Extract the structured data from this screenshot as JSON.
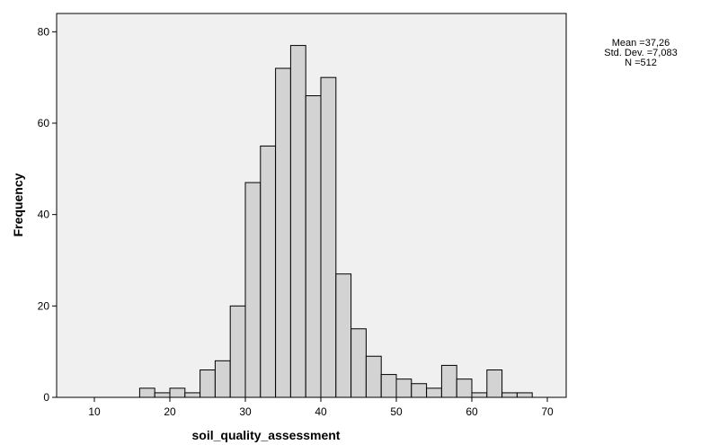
{
  "chart_data": {
    "type": "bar",
    "title": "",
    "xlabel": "soil_quality_assessment",
    "ylabel": "Frequency",
    "xlim": [
      5,
      72.5
    ],
    "ylim": [
      0,
      84
    ],
    "xticks": [
      10,
      20,
      30,
      40,
      50,
      60,
      70
    ],
    "yticks": [
      0,
      20,
      40,
      60,
      80
    ],
    "bin_width": 2,
    "bins": [
      {
        "x0": 16,
        "x1": 18,
        "value": 2
      },
      {
        "x0": 18,
        "x1": 20,
        "value": 1
      },
      {
        "x0": 20,
        "x1": 22,
        "value": 2
      },
      {
        "x0": 22,
        "x1": 24,
        "value": 1
      },
      {
        "x0": 24,
        "x1": 26,
        "value": 6
      },
      {
        "x0": 26,
        "x1": 28,
        "value": 8
      },
      {
        "x0": 28,
        "x1": 30,
        "value": 20
      },
      {
        "x0": 30,
        "x1": 32,
        "value": 47
      },
      {
        "x0": 32,
        "x1": 34,
        "value": 55
      },
      {
        "x0": 34,
        "x1": 36,
        "value": 72
      },
      {
        "x0": 36,
        "x1": 38,
        "value": 77
      },
      {
        "x0": 38,
        "x1": 40,
        "value": 66
      },
      {
        "x0": 40,
        "x1": 42,
        "value": 70
      },
      {
        "x0": 42,
        "x1": 44,
        "value": 27
      },
      {
        "x0": 44,
        "x1": 46,
        "value": 15
      },
      {
        "x0": 46,
        "x1": 48,
        "value": 9
      },
      {
        "x0": 48,
        "x1": 50,
        "value": 5
      },
      {
        "x0": 50,
        "x1": 52,
        "value": 4
      },
      {
        "x0": 52,
        "x1": 54,
        "value": 3
      },
      {
        "x0": 54,
        "x1": 56,
        "value": 2
      },
      {
        "x0": 56,
        "x1": 58,
        "value": 7
      },
      {
        "x0": 58,
        "x1": 60,
        "value": 4
      },
      {
        "x0": 60,
        "x1": 62,
        "value": 1
      },
      {
        "x0": 62,
        "x1": 64,
        "value": 6
      },
      {
        "x0": 64,
        "x1": 66,
        "value": 1
      },
      {
        "x0": 66,
        "x1": 68,
        "value": 1
      }
    ],
    "stats": {
      "mean_label": "Mean =37,26",
      "sd_label": "Std. Dev. =7,083",
      "n_label": "N =512"
    },
    "plot_background": "#f0f0f0",
    "bar_fill": "#d3d3d3",
    "bar_stroke": "#000000",
    "grid": false,
    "legend": "top-right"
  }
}
